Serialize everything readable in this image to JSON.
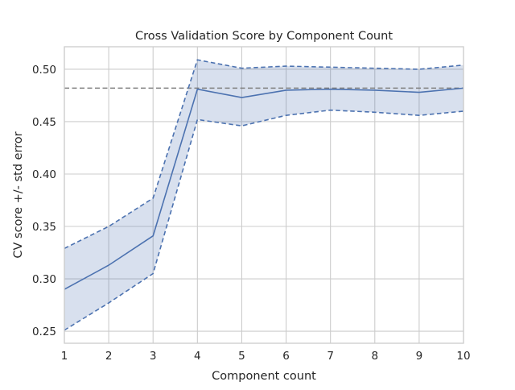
{
  "chart_data": {
    "type": "line",
    "title": "Cross Validation Score by Component Count",
    "xlabel": "Component count",
    "ylabel": "CV score +/- std error",
    "x": [
      1,
      2,
      3,
      4,
      5,
      6,
      7,
      8,
      9,
      10
    ],
    "xlim": [
      1,
      10
    ],
    "ylim": [
      0.2385,
      0.5215
    ],
    "xticks": [
      1,
      2,
      3,
      4,
      5,
      6,
      7,
      8,
      9,
      10
    ],
    "yticks": [
      0.25,
      0.3,
      0.35,
      0.4,
      0.45,
      0.5
    ],
    "xtick_labels": [
      "1",
      "2",
      "3",
      "4",
      "5",
      "6",
      "7",
      "8",
      "9",
      "10"
    ],
    "ytick_labels": [
      "0.25",
      "0.30",
      "0.35",
      "0.40",
      "0.45",
      "0.50"
    ],
    "grid": true,
    "series": [
      {
        "role": "mean",
        "style": "solid",
        "values": [
          0.29,
          0.313,
          0.341,
          0.481,
          0.473,
          0.48,
          0.481,
          0.48,
          0.478,
          0.482
        ]
      },
      {
        "role": "upper",
        "style": "dashed",
        "values": [
          0.329,
          0.35,
          0.377,
          0.509,
          0.501,
          0.503,
          0.502,
          0.501,
          0.5,
          0.504
        ]
      },
      {
        "role": "lower",
        "style": "dashed",
        "values": [
          0.251,
          0.277,
          0.305,
          0.452,
          0.446,
          0.456,
          0.461,
          0.459,
          0.456,
          0.46
        ]
      }
    ],
    "reference_line": {
      "orientation": "horizontal",
      "y": 0.482,
      "style": "dashed",
      "color": "#808080"
    },
    "colors": {
      "line": "#4c72b0",
      "band": "#4c72b0",
      "grid": "#cccccc",
      "axes_edge": "#cccccc"
    }
  }
}
